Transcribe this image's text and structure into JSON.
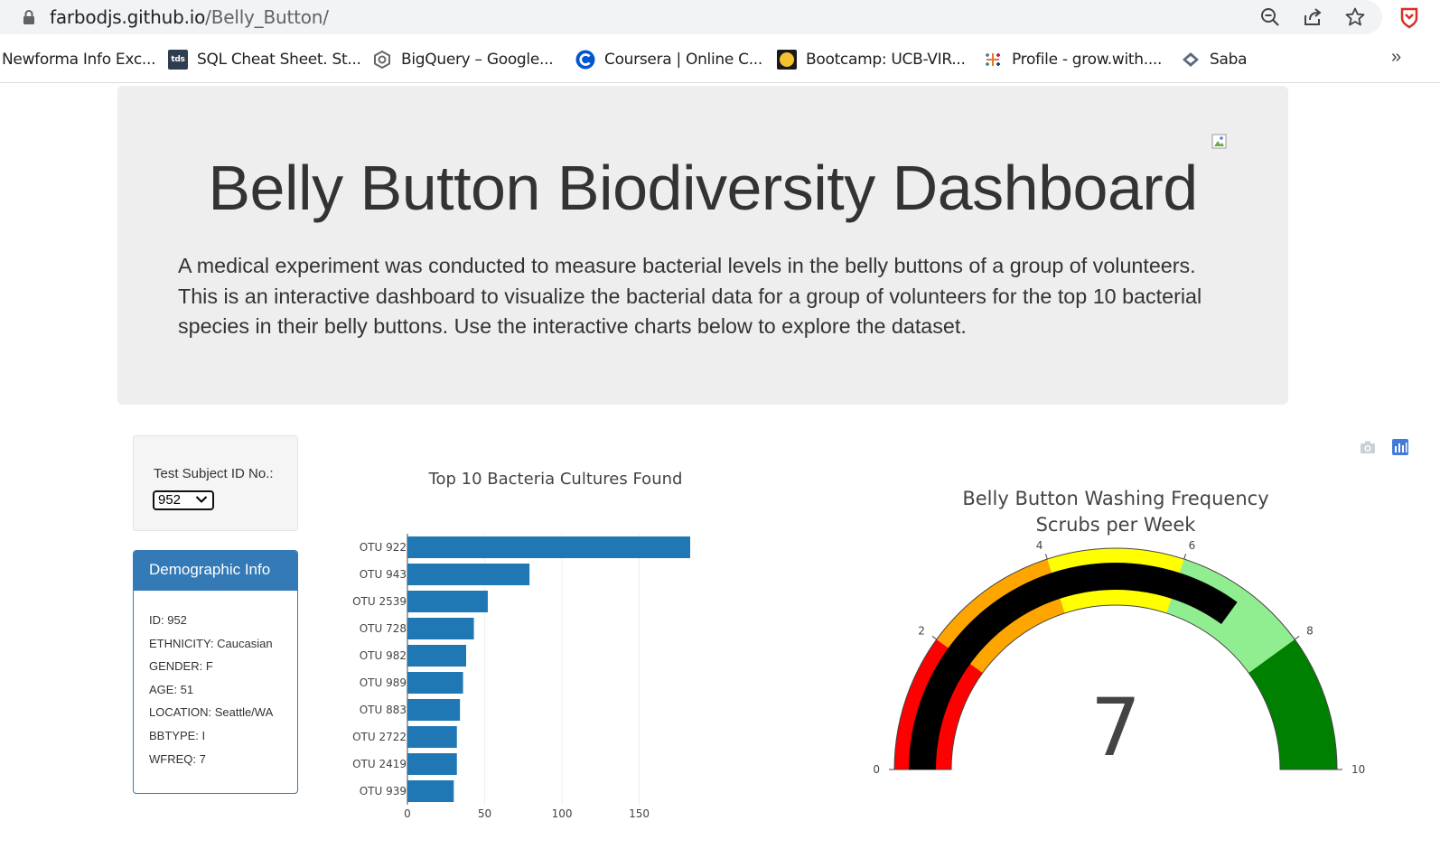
{
  "browser": {
    "url_host": "farbodjs.github.io",
    "url_path": "/Belly_Button/",
    "bookmarks": [
      {
        "label": "Newforma Info Exc...",
        "icon": "newforma-icon"
      },
      {
        "label": "SQL Cheat Sheet. St...",
        "icon": "tds-icon",
        "badge": "tds"
      },
      {
        "label": "BigQuery –  Google...",
        "icon": "bigquery-icon"
      },
      {
        "label": "Coursera | Online C...",
        "icon": "coursera-icon"
      },
      {
        "label": "Bootcamp: UCB-VIR...",
        "icon": "bootcamp-icon"
      },
      {
        "label": "Profile - grow.with....",
        "icon": "tableau-icon"
      },
      {
        "label": "Saba",
        "icon": "saba-icon"
      }
    ],
    "more": "»"
  },
  "header": {
    "title": "Belly Button Biodiversity Dashboard",
    "lead": "A medical experiment was conducted to measure bacterial levels in the belly buttons of a group of volunteers. This is an interactive dashboard to visualize the bacterial data for a group of volunteers for the top 10 bacterial species in their belly buttons. Use the interactive charts below to explore the dataset."
  },
  "selector": {
    "label": "Test Subject ID No.:",
    "value": "952"
  },
  "demographics": {
    "heading": "Demographic Info",
    "rows": [
      "ID: 952",
      "ETHNICITY: Caucasian",
      "GENDER: F",
      "AGE: 51",
      "LOCATION: Seattle/WA",
      "BBTYPE: I",
      "WFREQ: 7"
    ]
  },
  "colors": {
    "bar": "#1f77b4",
    "panel_blue": "#337ab7",
    "gauge_needle": "#000000"
  },
  "chart_data": [
    {
      "type": "bar",
      "orientation": "horizontal",
      "title": "Top 10 Bacteria Cultures Found",
      "categories": [
        "OTU 922",
        "OTU 943",
        "OTU 2539",
        "OTU 728",
        "OTU 982",
        "OTU 989",
        "OTU 883",
        "OTU 2722",
        "OTU 2419",
        "OTU 939"
      ],
      "values": [
        183,
        79,
        52,
        43,
        38,
        36,
        34,
        32,
        32,
        30
      ],
      "xlim": [
        0,
        183
      ],
      "xticks": [
        0,
        50,
        100,
        150
      ],
      "grid": true
    },
    {
      "type": "gauge",
      "title": "Belly Button Washing Frequency",
      "subtitle": "Scrubs per Week",
      "value": 7,
      "range": [
        0,
        10
      ],
      "ticks": [
        0,
        2,
        4,
        6,
        8,
        10
      ],
      "steps": [
        {
          "range": [
            0,
            2
          ],
          "color": "#ff0000"
        },
        {
          "range": [
            2,
            4
          ],
          "color": "#ffa500"
        },
        {
          "range": [
            4,
            6
          ],
          "color": "#ffff00"
        },
        {
          "range": [
            6,
            8
          ],
          "color": "#90ee90"
        },
        {
          "range": [
            8,
            10
          ],
          "color": "#008000"
        }
      ],
      "bar_color": "#000000"
    }
  ]
}
